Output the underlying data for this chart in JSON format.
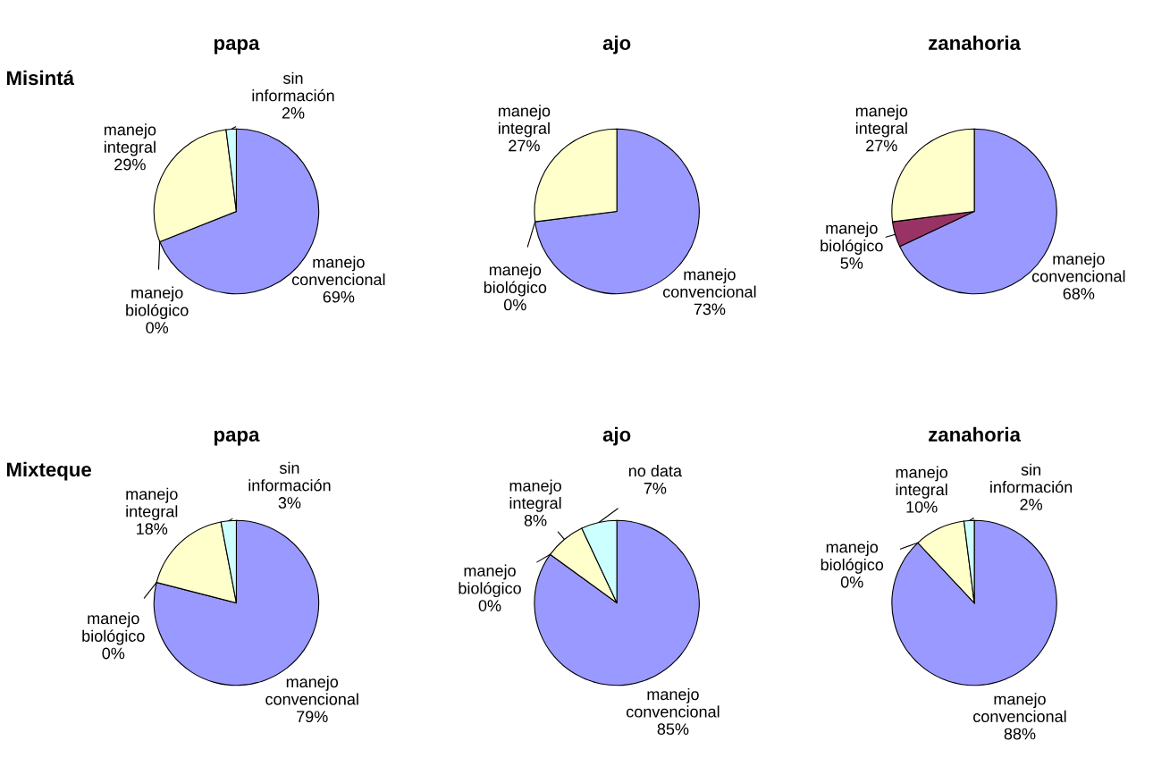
{
  "chart_data": [
    {
      "type": "pie",
      "title": "papa",
      "annotations": [
        "Misintá"
      ],
      "categories": [
        "manejo\nconvencional",
        "manejo\nbiológico",
        "manejo\nintegral",
        "sin\ninformación"
      ],
      "values": [
        69,
        0,
        29,
        2
      ],
      "value_labels": [
        "69%",
        "0%",
        "29%",
        "2%"
      ],
      "colors": [
        "#9999ff",
        "#993366",
        "#ffffcc",
        "#ccffff"
      ]
    },
    {
      "type": "pie",
      "title": "ajo",
      "categories": [
        "manejo\nconvencional",
        "manejo\nbiológico",
        "manejo\nintegral"
      ],
      "values": [
        73,
        0,
        27
      ],
      "value_labels": [
        "73%",
        "0%",
        "27%"
      ],
      "colors": [
        "#9999ff",
        "#993366",
        "#ffffcc"
      ]
    },
    {
      "type": "pie",
      "title": "zanahoria",
      "categories": [
        "manejo\nconvencional",
        "manejo\nbiológico",
        "manejo\nintegral"
      ],
      "values": [
        68,
        5,
        27
      ],
      "value_labels": [
        "68%",
        "5%",
        "27%"
      ],
      "colors": [
        "#9999ff",
        "#993366",
        "#ffffcc"
      ]
    },
    {
      "type": "pie",
      "title": "papa",
      "annotations": [
        "Mixteque"
      ],
      "categories": [
        "manejo\nconvencional",
        "manejo\nbiológico",
        "manejo\nintegral",
        "sin\ninformación"
      ],
      "values": [
        79,
        0,
        18,
        3
      ],
      "value_labels": [
        "79%",
        "0%",
        "18%",
        "3%"
      ],
      "colors": [
        "#9999ff",
        "#993366",
        "#ffffcc",
        "#ccffff"
      ]
    },
    {
      "type": "pie",
      "title": "ajo",
      "categories": [
        "manejo\nconvencional",
        "manejo\nbiológico",
        "manejo\nintegral",
        "no data"
      ],
      "values": [
        85,
        0,
        8,
        7
      ],
      "value_labels": [
        "85%",
        "0%",
        "8%",
        "7%"
      ],
      "colors": [
        "#9999ff",
        "#993366",
        "#ffffcc",
        "#ccffff"
      ]
    },
    {
      "type": "pie",
      "title": "zanahoria",
      "categories": [
        "manejo\nconvencional",
        "manejo\nbiológico",
        "manejo\nintegral",
        "sin\ninformación"
      ],
      "values": [
        88,
        0,
        10,
        2
      ],
      "value_labels": [
        "88%",
        "0%",
        "10%",
        "2%"
      ],
      "colors": [
        "#9999ff",
        "#993366",
        "#ffffcc",
        "#ccffff"
      ]
    }
  ]
}
